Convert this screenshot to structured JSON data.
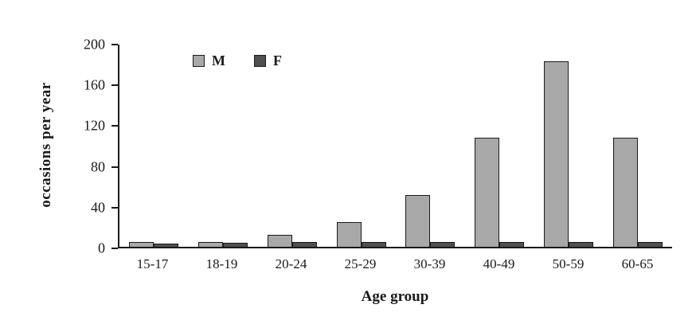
{
  "chart_data": {
    "type": "bar",
    "title": "",
    "xlabel": "Age group",
    "ylabel": "occasions per year",
    "categories": [
      "15-17",
      "18-19",
      "20-24",
      "25-29",
      "30-39",
      "40-49",
      "50-59",
      "60-65"
    ],
    "series": [
      {
        "name": "M",
        "color": "#a8a8a8",
        "values": [
          5,
          5,
          12,
          24,
          51,
          107,
          182,
          107
        ]
      },
      {
        "name": "F",
        "color": "#4f4f4f",
        "values": [
          3,
          4,
          5,
          5,
          5,
          5,
          5,
          5
        ]
      }
    ],
    "ylim": [
      0,
      200
    ],
    "yticks": [
      0,
      40,
      80,
      120,
      160,
      200
    ],
    "grid": false,
    "legend_position": "top-left-inside",
    "axis_color": "#1a1a1a",
    "background_color": "#ffffff"
  }
}
